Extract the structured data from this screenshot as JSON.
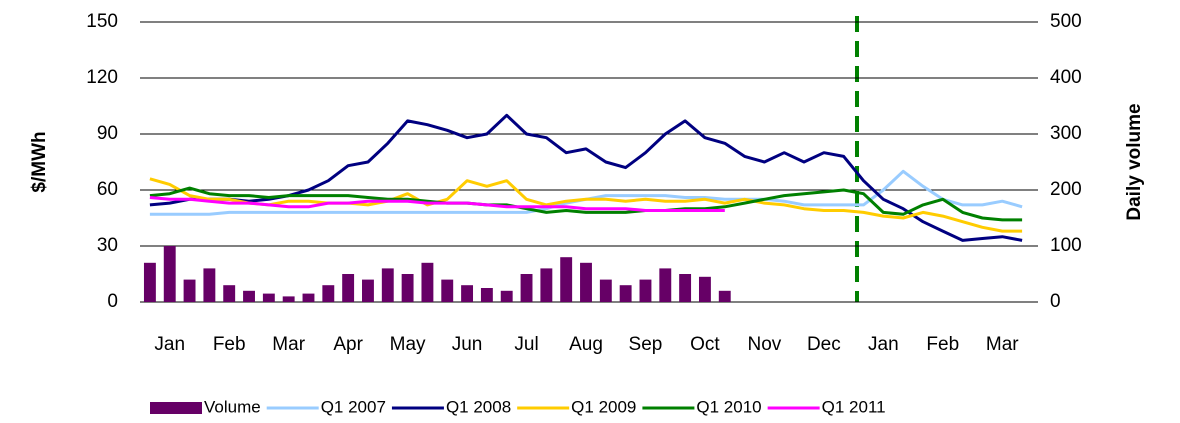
{
  "chart_data": {
    "type": "line",
    "y_label": "$/MWh",
    "y2_label": "Daily volume",
    "categories": [
      null,
      "Jan",
      null,
      null,
      "Feb",
      null,
      null,
      "Mar",
      null,
      null,
      "Apr",
      null,
      null,
      "May",
      null,
      null,
      "Jun",
      null,
      null,
      "Jul",
      null,
      null,
      "Aug",
      null,
      null,
      "Sep",
      null,
      null,
      "Oct",
      null,
      null,
      "Nov",
      null,
      null,
      "Dec",
      null,
      null,
      "Jan",
      null,
      null,
      "Feb",
      null,
      null,
      "Mar",
      null
    ],
    "ylim": [
      0,
      150
    ],
    "yticks": [
      0,
      30,
      60,
      90,
      120,
      150
    ],
    "y2lim": [
      0,
      500
    ],
    "y2ticks": [
      0,
      100,
      200,
      300,
      400,
      500
    ],
    "grid": true,
    "series": [
      {
        "name": "Volume",
        "type": "bar",
        "axis": "y2",
        "color": "#660066",
        "values": [
          70,
          100,
          40,
          60,
          30,
          20,
          15,
          10,
          15,
          30,
          50,
          40,
          60,
          50,
          70,
          40,
          30,
          25,
          20,
          50,
          60,
          80,
          70,
          40,
          30,
          40,
          60,
          50,
          45,
          20,
          null,
          null,
          null,
          null,
          null,
          null,
          null,
          null,
          null,
          null,
          null,
          null,
          null,
          null,
          null
        ]
      },
      {
        "name": "Q1 2007",
        "color": "#99ccff",
        "values": [
          47,
          47,
          47,
          47,
          48,
          48,
          48,
          48,
          48,
          48,
          48,
          48,
          48,
          48,
          48,
          48,
          48,
          48,
          48,
          48,
          50,
          53,
          55,
          57,
          57,
          57,
          57,
          56,
          56,
          55,
          55,
          55,
          54,
          52,
          52,
          52,
          52,
          60,
          70,
          62,
          55,
          52,
          52,
          54,
          51
        ]
      },
      {
        "name": "Q1 2008",
        "color": "#000080",
        "values": [
          52,
          53,
          55,
          55,
          55,
          54,
          55,
          57,
          60,
          65,
          73,
          75,
          85,
          97,
          95,
          92,
          88,
          90,
          100,
          90,
          88,
          80,
          82,
          75,
          72,
          80,
          90,
          97,
          88,
          85,
          78,
          75,
          80,
          75,
          80,
          78,
          65,
          55,
          50,
          43,
          38,
          33,
          34,
          35,
          33
        ]
      },
      {
        "name": "Q1 2009",
        "color": "#ffcc00",
        "values": [
          66,
          63,
          57,
          55,
          55,
          53,
          52,
          54,
          54,
          53,
          53,
          52,
          54,
          58,
          52,
          55,
          65,
          62,
          65,
          55,
          52,
          54,
          55,
          55,
          54,
          55,
          54,
          54,
          55,
          53,
          55,
          53,
          52,
          50,
          49,
          49,
          48,
          46,
          45,
          48,
          46,
          43,
          40,
          38,
          38
        ]
      },
      {
        "name": "Q1 2010",
        "color": "#008000",
        "values": [
          57,
          58,
          61,
          58,
          57,
          57,
          56,
          57,
          57,
          57,
          57,
          56,
          55,
          55,
          54,
          53,
          53,
          52,
          52,
          50,
          48,
          49,
          48,
          48,
          48,
          49,
          49,
          50,
          50,
          51,
          53,
          55,
          57,
          58,
          59,
          60,
          58,
          48,
          47,
          52,
          55,
          48,
          45,
          44,
          44
        ]
      },
      {
        "name": "Q1 2011",
        "color": "#ff00ff",
        "values": [
          56,
          55,
          55,
          54,
          53,
          53,
          52,
          51,
          51,
          53,
          53,
          54,
          54,
          54,
          53,
          53,
          53,
          52,
          51,
          51,
          51,
          51,
          50,
          50,
          50,
          49,
          49,
          49,
          49,
          49,
          null,
          null,
          null,
          null,
          null,
          null,
          null,
          null,
          null,
          null,
          null,
          null,
          null,
          null,
          null
        ]
      }
    ]
  }
}
